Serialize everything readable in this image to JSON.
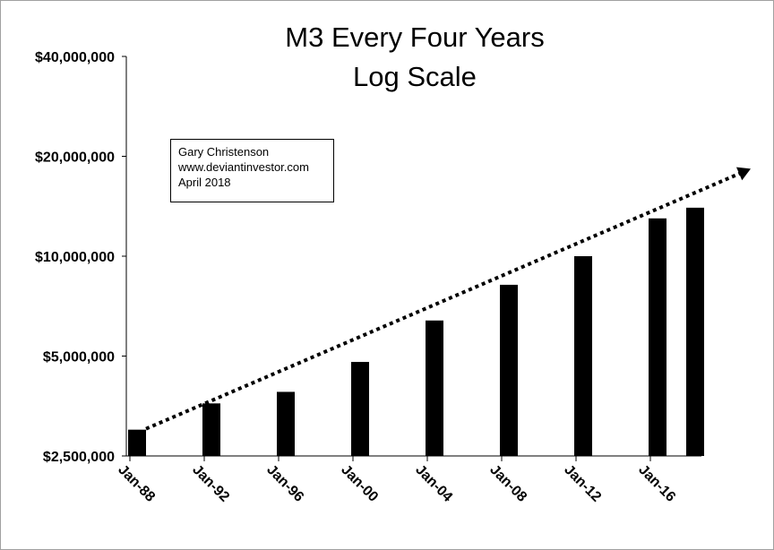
{
  "chart_data": {
    "type": "bar",
    "title": "M3 Every Four Years",
    "subtitle": "Log Scale",
    "xlabel": "",
    "ylabel": "",
    "yscale": "log",
    "ylim": [
      2500000,
      40000000
    ],
    "yticks": [
      {
        "value": 2500000,
        "label": "$2,500,000"
      },
      {
        "value": 5000000,
        "label": "$5,000,000"
      },
      {
        "value": 10000000,
        "label": "$10,000,000"
      },
      {
        "value": 20000000,
        "label": "$20,000,000"
      },
      {
        "value": 40000000,
        "label": "$40,000,000"
      }
    ],
    "categories": [
      "Jan-88",
      "Jan-92",
      "Jan-96",
      "Jan-00",
      "Jan-04",
      "Jan-08",
      "Jan-12",
      "Jan-16",
      ""
    ],
    "values": [
      3000000,
      3600000,
      3900000,
      4800000,
      6400000,
      8200000,
      10000000,
      13000000,
      14000000
    ],
    "trend": {
      "style": "dotted arrow",
      "from": 3000000,
      "to": 16000000
    },
    "grid": false,
    "legend": "none",
    "bar_color": "#000000"
  },
  "annotation": {
    "lines": [
      "Gary Christenson",
      "www.deviantinvestor.com",
      "April 2018"
    ]
  }
}
